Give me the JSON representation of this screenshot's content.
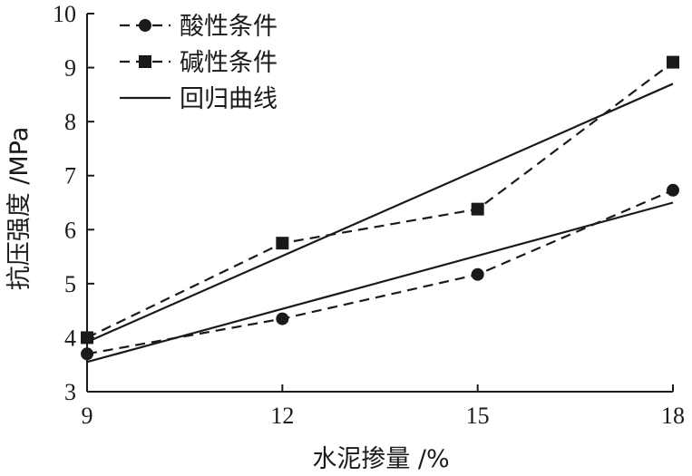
{
  "chart_data": {
    "type": "line",
    "title": "",
    "xlabel": "水泥掺量 /%",
    "ylabel": "抗压强度 /MPa",
    "xlim": [
      9,
      18
    ],
    "ylim": [
      3,
      10
    ],
    "x_ticks": [
      9,
      12,
      15,
      18
    ],
    "y_ticks": [
      3,
      4,
      5,
      6,
      7,
      8,
      9,
      10
    ],
    "grid": false,
    "legend_position": "top-left",
    "series": [
      {
        "name": "酸性条件",
        "marker": "circle",
        "line_style": "dashed",
        "x": [
          9,
          12,
          15,
          18
        ],
        "y": [
          3.7,
          4.35,
          5.17,
          6.73
        ]
      },
      {
        "name": "碱性条件",
        "marker": "square",
        "line_style": "dashed",
        "x": [
          9,
          12,
          15,
          18
        ],
        "y": [
          4.0,
          5.75,
          6.38,
          9.1
        ]
      }
    ],
    "regression": {
      "name": "回归曲线",
      "line_style": "solid",
      "lines": [
        {
          "x": [
            9,
            18
          ],
          "y": [
            3.55,
            6.5
          ]
        },
        {
          "x": [
            9,
            18
          ],
          "y": [
            3.92,
            8.7
          ]
        }
      ]
    }
  }
}
